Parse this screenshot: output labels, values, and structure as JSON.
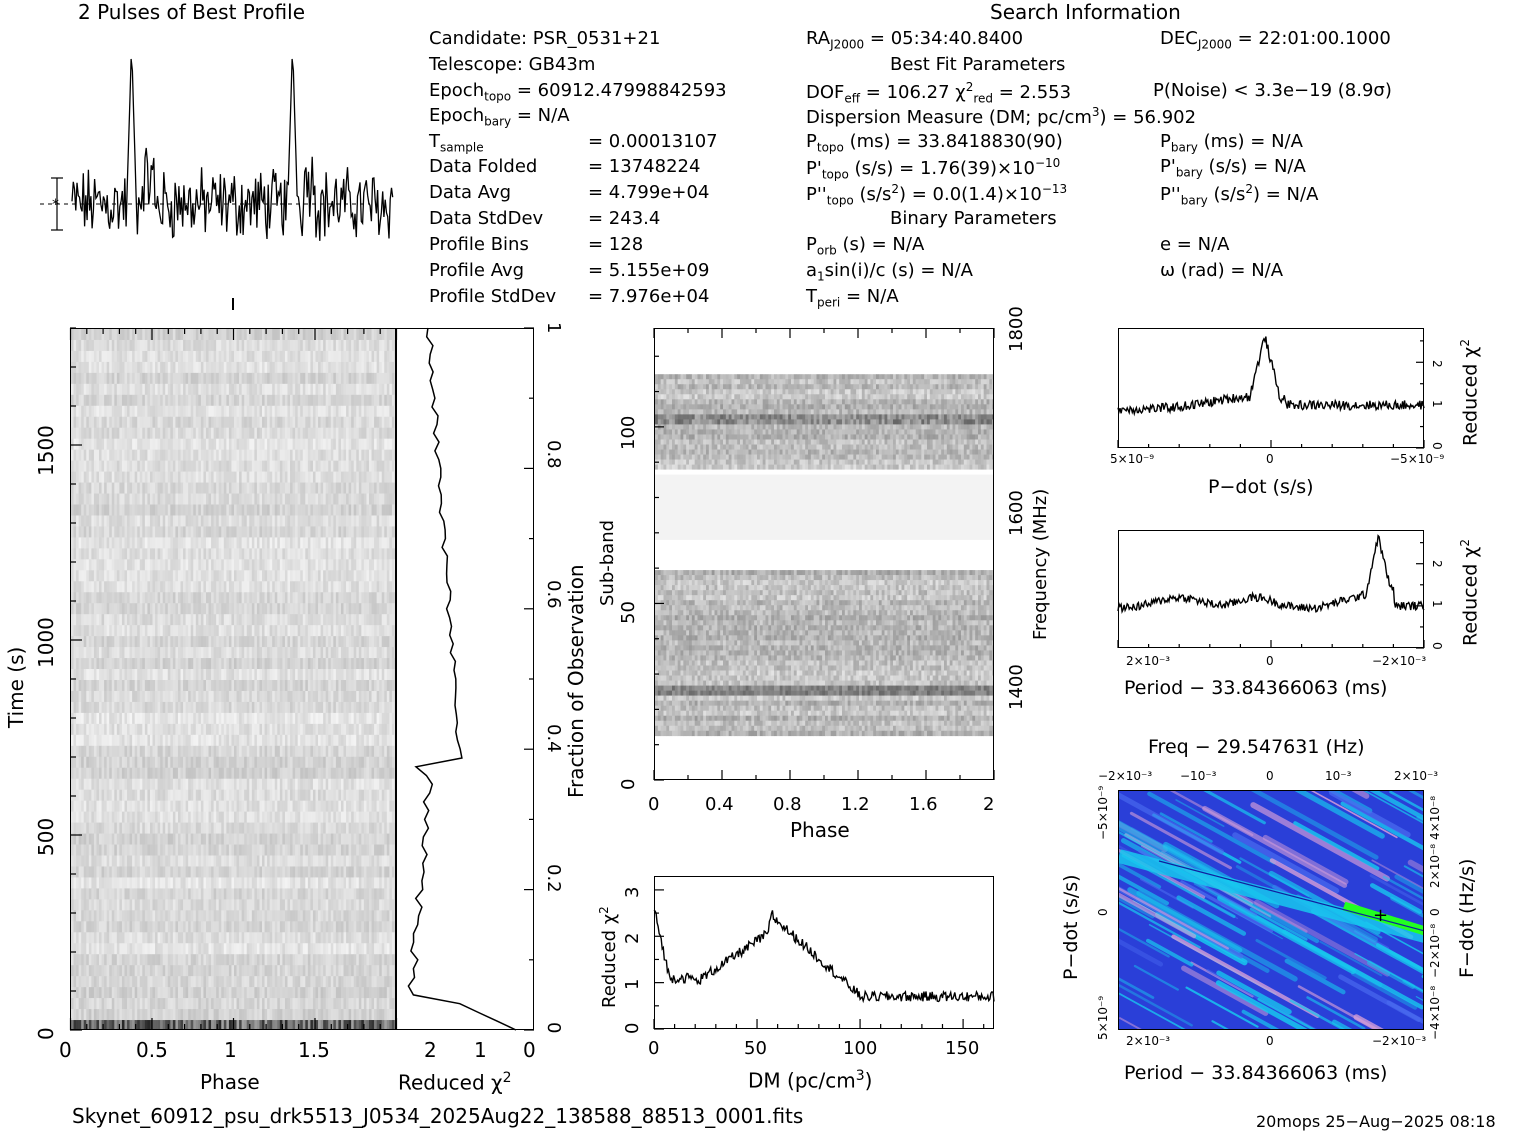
{
  "header": {
    "profile_title": "2 Pulses of Best Profile",
    "search_title": "Search Information"
  },
  "info_left": [
    {
      "k": "Candidate:  PSR_0531+21",
      "v": ""
    },
    {
      "k": "Telescope:  GB43m",
      "v": ""
    },
    {
      "k": "Epoch",
      "sub": "topo",
      "v": " = 60912.47998842593"
    },
    {
      "k": "Epoch",
      "sub": "bary",
      "v": " = N/A"
    },
    {
      "k": "T",
      "sub": "sample",
      "v2": "=   0.00013107"
    },
    {
      "k": "Data Folded",
      "v2": "=   13748224"
    },
    {
      "k": "Data Avg",
      "v2": "=   4.799e+04"
    },
    {
      "k": "Data StdDev",
      "v2": "=   243.4"
    },
    {
      "k": "Profile Bins",
      "v2": "=   128"
    },
    {
      "k": "Profile Avg",
      "v2": "=   5.155e+09"
    },
    {
      "k": "Profile StdDev",
      "v2": "=   7.976e+04"
    }
  ],
  "info_mid": {
    "ra": "RA",
    "ra_sub": "J2000",
    "ra_val": " = 05:34:40.8400",
    "dec": "DEC",
    "dec_sub": "J2000",
    "dec_val": " = 22:01:00.1000",
    "best_fit": "Best Fit Parameters",
    "dof": "DOF",
    "dof_sub": "eff",
    "dof_val": " = 106.27",
    "chi": " χ",
    "chi_sup": "2",
    "chi_sub": "red",
    "chi_val": " = 2.553",
    "pnoise": "P(Noise) < 3.3e−19   (8.9σ)",
    "dm_label": "Dispersion Measure (DM; pc/cm",
    "dm_sup": "3",
    "dm_val": ") = 56.902",
    "ptopo": "P",
    "ptopo_sub": "topo",
    "ptopo_val": " (ms) =  33.8418830(90)",
    "pbary": "P",
    "pbary_sub": "bary",
    "pbary_val": " (ms) = N/A",
    "pdtopo": "P'",
    "pdtopo_sub": "topo",
    "pdtopo_val": " (s/s) =  1.76(39)×10",
    "pdtopo_exp": "−10",
    "pdbary": "P'",
    "pdbary_sub": "bary",
    "pdbary_val": " (s/s) = N/A",
    "pddtopo": "P''",
    "pddtopo_sub": "topo",
    "pddtopo_val": " (s/s",
    "pddtopo_sup": "2",
    "pddtopo_val2": ") = 0.0(1.4)×10",
    "pddtopo_exp": "−13",
    "pddbary": "P''",
    "pddbary_sub": "bary",
    "pddbary_val": " (s/s",
    "pddbary_sup": "2",
    "pddbary_val2": ") = N/A",
    "binary": "Binary Parameters",
    "porb": "P",
    "porb_sub": "orb",
    "porb_val": " (s) = N/A",
    "ecc": "e = N/A",
    "a1": "a",
    "a1_sub": "1",
    "a1_val": "sin(i)/c (s) = N/A",
    "omega": "ω (rad) = N/A",
    "tperi": "T",
    "tperi_sub": "peri",
    "tperi_val": " = N/A"
  },
  "panels": {
    "time_phase": {
      "xlabel": "Phase",
      "ylabel": "Time (s)",
      "xticks": [
        "0",
        "0.5",
        "1",
        "1.5"
      ],
      "yticks": [
        "0",
        "500",
        "1000",
        "1500"
      ]
    },
    "redchi_time": {
      "xlabel": "Reduced χ",
      "xlabel_sup": "2",
      "xticks": [
        "2",
        "1",
        "0"
      ],
      "y2label": "Fraction of Observation",
      "y2ticks": [
        "0",
        "0.2",
        "0.4",
        "0.6",
        "0.8",
        "1"
      ]
    },
    "subband": {
      "xlabel": "Phase",
      "ylabel": "Sub-band",
      "xticks": [
        "0",
        "0.4",
        "0.8",
        "1.2",
        "1.6",
        "2"
      ],
      "yticks": [
        "0",
        "50",
        "100"
      ],
      "y2label": "Frequency (MHz)",
      "y2ticks": [
        "1400",
        "1600",
        "1800"
      ]
    },
    "dm": {
      "xlabel": "DM (pc/cm",
      "xlabel_sup": "3",
      "xlabel_end": ")",
      "ylabel": "Reduced χ",
      "ylabel_sup": "2",
      "xticks": [
        "0",
        "50",
        "100",
        "150"
      ],
      "yticks": [
        "0",
        "1",
        "2",
        "3"
      ]
    },
    "pdot": {
      "xlabel": "P−dot (s/s)",
      "ylabel": "Reduced χ",
      "ylabel_sup": "2",
      "xticks": [
        "5×10⁻⁹",
        "0",
        "−5×10⁻⁹"
      ],
      "yticks": [
        "0",
        "1",
        "2"
      ]
    },
    "period": {
      "xlabel": "Period − 33.84366063 (ms)",
      "ylabel": "Reduced χ",
      "ylabel_sup": "2",
      "xticks": [
        "2×10⁻³",
        "0",
        "−2×10⁻³"
      ],
      "yticks": [
        "0",
        "1",
        "2"
      ]
    },
    "ppdot": {
      "title": "Freq − 29.547631 (Hz)",
      "xlabel": "Period − 33.84366063 (ms)",
      "ylabel": "P−dot (s/s)",
      "y2label": "F−dot (Hz/s)",
      "top_ticks": [
        "−2×10⁻³",
        "−10⁻³",
        "0",
        "10⁻³",
        "2×10⁻³"
      ],
      "bottom_ticks": [
        "2×10⁻³",
        "0",
        "−2×10⁻³"
      ],
      "left_ticks": [
        "−5×10⁻⁹",
        "0",
        "5×10⁻⁹"
      ],
      "right_ticks": [
        "4×10⁻⁸",
        "2×10⁻⁸",
        "0",
        "−2×10⁻⁸",
        "−4×10⁻⁸"
      ]
    }
  },
  "footer": {
    "filename": "Skynet_60912_psu_drk5513_J0534_2025Aug22_138588_88513_0001.fits",
    "stamp": "20mops 25−Aug−2025 08:18"
  },
  "colors": {
    "ppdot_bg": "#2a3fd8",
    "ppdot_cyan": "#18c8ee",
    "ppdot_green": "#22ff22",
    "ppdot_pink": "#d8a0d8"
  },
  "chart_data": [
    {
      "type": "line",
      "title": "2 Pulses of Best Profile",
      "x_range": [
        0,
        2
      ],
      "description_points": "two pulses at phase ~0.37 and ~1.37",
      "series": [
        {
          "peak_phase": [
            0.37,
            1.37
          ]
        }
      ]
    },
    {
      "type": "heatmap",
      "xlabel": "Phase",
      "ylabel": "Time (s)",
      "xlim": [
        0,
        2
      ],
      "ylim": [
        0,
        1800
      ]
    },
    {
      "type": "line",
      "xlabel": "Reduced χ2",
      "xlim": [
        3,
        0
      ],
      "ylim": [
        0,
        1
      ],
      "y2label": "Fraction of Observation"
    },
    {
      "type": "heatmap",
      "xlabel": "Phase",
      "ylabel": "Sub-band",
      "xlim": [
        0,
        2
      ],
      "ylim": [
        0,
        128
      ],
      "y2label": "Frequency (MHz)"
    },
    {
      "type": "line",
      "xlabel": "DM (pc/cm3)",
      "ylabel": "Reduced χ2",
      "xlim": [
        0,
        165
      ],
      "ylim": [
        0,
        3.3
      ],
      "series": [
        {
          "x": [
            0,
            5,
            10,
            20,
            30,
            40,
            50,
            55,
            57,
            60,
            70,
            80,
            90,
            100,
            120,
            140,
            165
          ],
          "values": [
            2.6,
            1.3,
            1.1,
            1.0,
            1.2,
            1.6,
            2.0,
            2.1,
            2.6,
            1.7,
            1.2,
            1.0,
            0.8,
            0.6,
            0.7,
            0.7,
            0.8
          ]
        }
      ]
    },
    {
      "type": "line",
      "xlabel": "P−dot (s/s)",
      "ylabel": "Reduced χ2",
      "xlim": [
        5e-09,
        -5e-09
      ],
      "ylim": [
        0,
        2.8
      ],
      "series": [
        {
          "x": [
            5e-09,
            3e-09,
            1e-09,
            2e-10,
            0,
            -1e-09,
            -3e-09,
            -5e-09
          ],
          "values": [
            0.9,
            1.1,
            1.3,
            1.8,
            2.5,
            1.2,
            1.0,
            1.0
          ]
        }
      ]
    },
    {
      "type": "line",
      "xlabel": "Period − 33.84366063 (ms)",
      "ylabel": "Reduced χ2",
      "xlim": [
        0.0023,
        -0.0023
      ],
      "ylim": [
        0,
        2.8
      ],
      "series": [
        {
          "x": [
            0.0023,
            0.0015,
            0,
            -0.001,
            -0.0015,
            -0.0018,
            -0.002,
            -0.0023
          ],
          "values": [
            0.9,
            1.2,
            1.1,
            1.0,
            1.3,
            2.6,
            1.2,
            1.0
          ]
        }
      ]
    },
    {
      "type": "heatmap",
      "title": "Freq − 29.547631 (Hz)",
      "xlabel": "Period − 33.84366063 (ms)",
      "ylabel": "P−dot (s/s)",
      "y2label": "F−dot (Hz/s)"
    }
  ]
}
